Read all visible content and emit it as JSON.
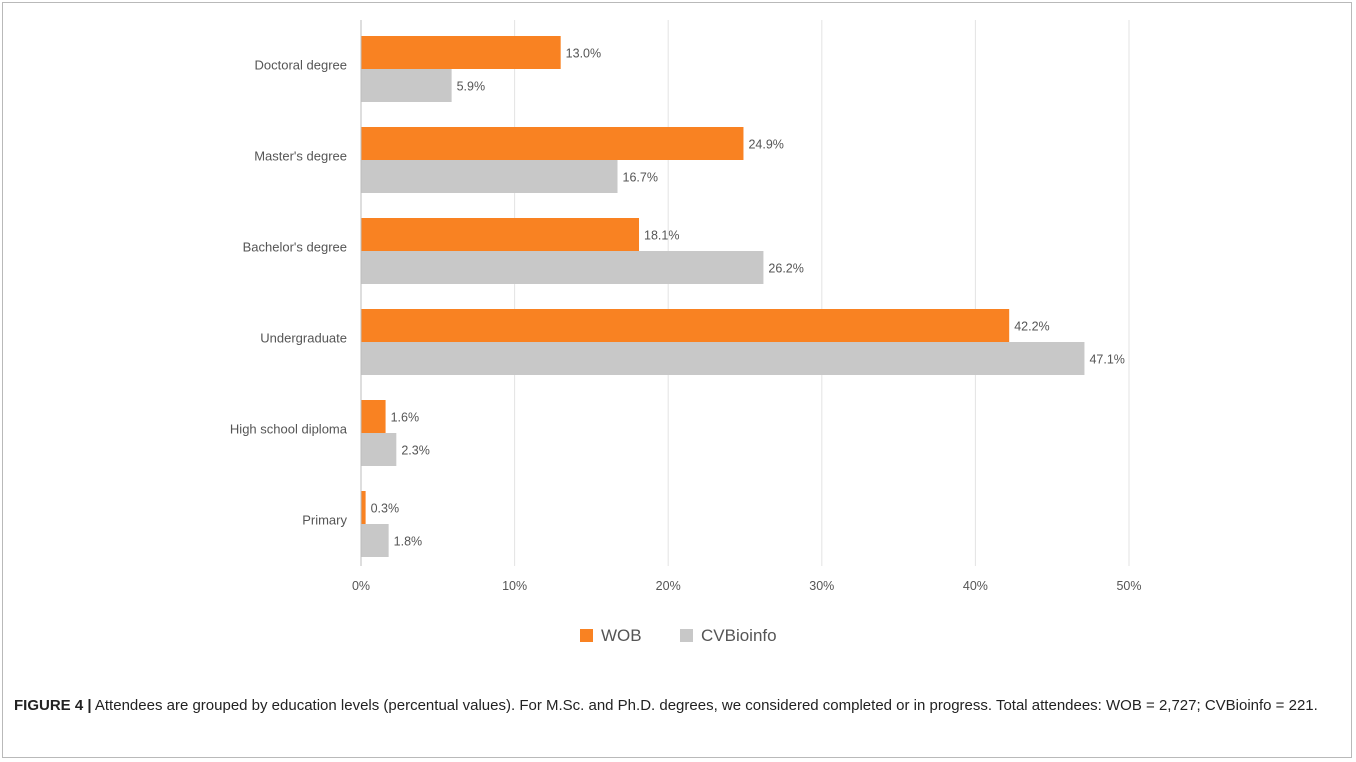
{
  "chart_data": {
    "type": "bar",
    "orientation": "horizontal",
    "categories": [
      "Doctoral degree",
      "Master's degree",
      "Bachelor's degree",
      "Undergraduate",
      "High school diploma",
      "Primary"
    ],
    "series": [
      {
        "name": "WOB",
        "color": "#f98222",
        "values": [
          13.0,
          24.9,
          18.1,
          42.2,
          1.6,
          0.3
        ],
        "labels": [
          "13.0%",
          "24.9%",
          "18.1%",
          "42.2%",
          "1.6%",
          "0.3%"
        ]
      },
      {
        "name": "CVBioinfo",
        "color": "#c8c8c8",
        "values": [
          5.9,
          16.7,
          26.2,
          47.1,
          2.3,
          1.8
        ],
        "labels": [
          "5.9%",
          "16.7%",
          "26.2%",
          "47.1%",
          "2.3%",
          "1.8%"
        ]
      }
    ],
    "xlim": [
      0,
      50
    ],
    "xticks": [
      0,
      10,
      20,
      30,
      40,
      50
    ],
    "xtick_labels": [
      "0%",
      "10%",
      "20%",
      "30%",
      "40%",
      "50%"
    ],
    "grid": true,
    "legend_position": "bottom"
  },
  "caption": {
    "label": "FIGURE 4 |",
    "text": " Attendees are grouped by education levels (percentual values). For M.Sc. and Ph.D. degrees, we considered completed or in progress. Total attendees: WOB = 2,727; CVBioinfo = 221."
  }
}
